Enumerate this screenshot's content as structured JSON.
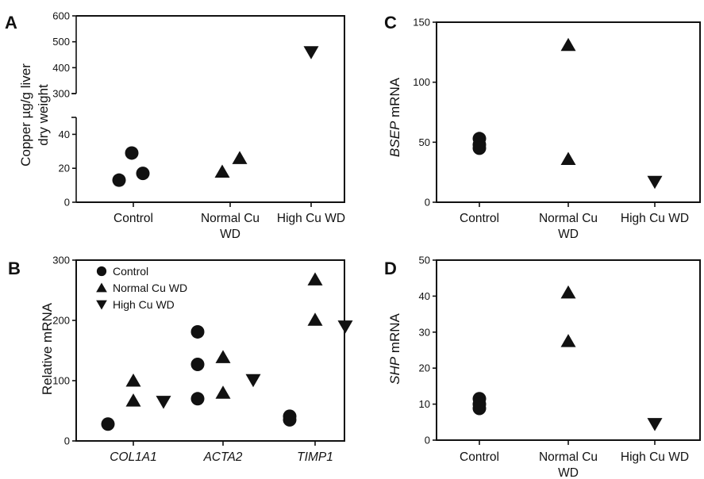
{
  "chart_data": [
    {
      "panel": "A",
      "type": "scatter",
      "ylabel_lines": [
        "Copper µg/g liver",
        "dry weight"
      ],
      "axis_break": {
        "lower": [
          0,
          50
        ],
        "upper": [
          300,
          600
        ]
      },
      "yticks": [
        0,
        20,
        40,
        300,
        400,
        500,
        600
      ],
      "categories": [
        [
          "Control"
        ],
        [
          "Normal Cu",
          "WD"
        ],
        [
          "High Cu WD"
        ]
      ],
      "points": [
        {
          "category": 0,
          "offset": -0.18,
          "y": 13,
          "marker": "circle"
        },
        {
          "category": 0,
          "offset": -0.02,
          "y": 29,
          "marker": "circle"
        },
        {
          "category": 0,
          "offset": 0.12,
          "y": 17,
          "marker": "circle"
        },
        {
          "category": 1,
          "offset": -0.1,
          "y": 18,
          "marker": "triangle-up"
        },
        {
          "category": 1,
          "offset": 0.12,
          "y": 26,
          "marker": "triangle-up"
        },
        {
          "category": 2,
          "offset": 0.0,
          "y": 460,
          "marker": "triangle-down"
        }
      ]
    },
    {
      "panel": "B",
      "type": "scatter",
      "ylabel": "Relative mRNA",
      "ylim": [
        0,
        300
      ],
      "yticks": [
        0,
        100,
        200,
        300
      ],
      "categories": [
        [
          "COL1A1"
        ],
        [
          "ACTA2"
        ],
        [
          "TIMP1"
        ]
      ],
      "italic_categories": true,
      "legend": [
        {
          "label": "Control",
          "marker": "circle"
        },
        {
          "label": "Normal Cu WD",
          "marker": "triangle-up"
        },
        {
          "label": "High Cu WD",
          "marker": "triangle-down"
        }
      ],
      "points": [
        {
          "category": 0,
          "offset": -0.32,
          "y": 28,
          "marker": "circle"
        },
        {
          "category": 0,
          "offset": 0.0,
          "y": 100,
          "marker": "triangle-up"
        },
        {
          "category": 0,
          "offset": 0.0,
          "y": 67,
          "marker": "triangle-up"
        },
        {
          "category": 0,
          "offset": 0.38,
          "y": 65,
          "marker": "triangle-down"
        },
        {
          "category": 1,
          "offset": -0.32,
          "y": 181,
          "marker": "circle"
        },
        {
          "category": 1,
          "offset": -0.32,
          "y": 127,
          "marker": "circle"
        },
        {
          "category": 1,
          "offset": -0.32,
          "y": 70,
          "marker": "circle"
        },
        {
          "category": 1,
          "offset": 0.0,
          "y": 139,
          "marker": "triangle-up"
        },
        {
          "category": 1,
          "offset": 0.0,
          "y": 80,
          "marker": "triangle-up"
        },
        {
          "category": 1,
          "offset": 0.38,
          "y": 101,
          "marker": "triangle-down"
        },
        {
          "category": 2,
          "offset": -0.32,
          "y": 41,
          "marker": "circle"
        },
        {
          "category": 2,
          "offset": -0.32,
          "y": 35,
          "marker": "circle"
        },
        {
          "category": 2,
          "offset": 0.0,
          "y": 268,
          "marker": "triangle-up"
        },
        {
          "category": 2,
          "offset": 0.0,
          "y": 201,
          "marker": "triangle-up"
        },
        {
          "category": 2,
          "offset": 0.38,
          "y": 190,
          "marker": "triangle-down"
        }
      ]
    },
    {
      "panel": "C",
      "type": "scatter",
      "ylabel_italic": "BSEP",
      "ylabel_rest": " mRNA",
      "ylim": [
        0,
        150
      ],
      "yticks": [
        0,
        50,
        100,
        150
      ],
      "categories": [
        [
          "Control"
        ],
        [
          "Normal Cu",
          "WD"
        ],
        [
          "High Cu WD"
        ]
      ],
      "points": [
        {
          "category": 0,
          "offset": 0.0,
          "y": 53,
          "marker": "circle"
        },
        {
          "category": 0,
          "offset": 0.0,
          "y": 48,
          "marker": "circle"
        },
        {
          "category": 0,
          "offset": 0.0,
          "y": 45,
          "marker": "circle"
        },
        {
          "category": 1,
          "offset": 0.0,
          "y": 131,
          "marker": "triangle-up"
        },
        {
          "category": 1,
          "offset": 0.0,
          "y": 36,
          "marker": "triangle-up"
        },
        {
          "category": 2,
          "offset": 0.0,
          "y": 17,
          "marker": "triangle-down"
        }
      ]
    },
    {
      "panel": "D",
      "type": "scatter",
      "ylabel_italic": "SHP",
      "ylabel_rest": " mRNA",
      "ylim": [
        0,
        50
      ],
      "yticks": [
        0,
        10,
        20,
        30,
        40,
        50
      ],
      "categories": [
        [
          "Control"
        ],
        [
          "Normal Cu",
          "WD"
        ],
        [
          "High Cu WD"
        ]
      ],
      "points": [
        {
          "category": 0,
          "offset": 0.0,
          "y": 11.5,
          "marker": "circle"
        },
        {
          "category": 0,
          "offset": 0.0,
          "y": 10,
          "marker": "circle"
        },
        {
          "category": 0,
          "offset": 0.0,
          "y": 8.8,
          "marker": "circle"
        },
        {
          "category": 1,
          "offset": 0.0,
          "y": 41,
          "marker": "triangle-up"
        },
        {
          "category": 1,
          "offset": 0.0,
          "y": 27.5,
          "marker": "triangle-up"
        },
        {
          "category": 2,
          "offset": 0.0,
          "y": 4.5,
          "marker": "triangle-down"
        }
      ]
    }
  ]
}
